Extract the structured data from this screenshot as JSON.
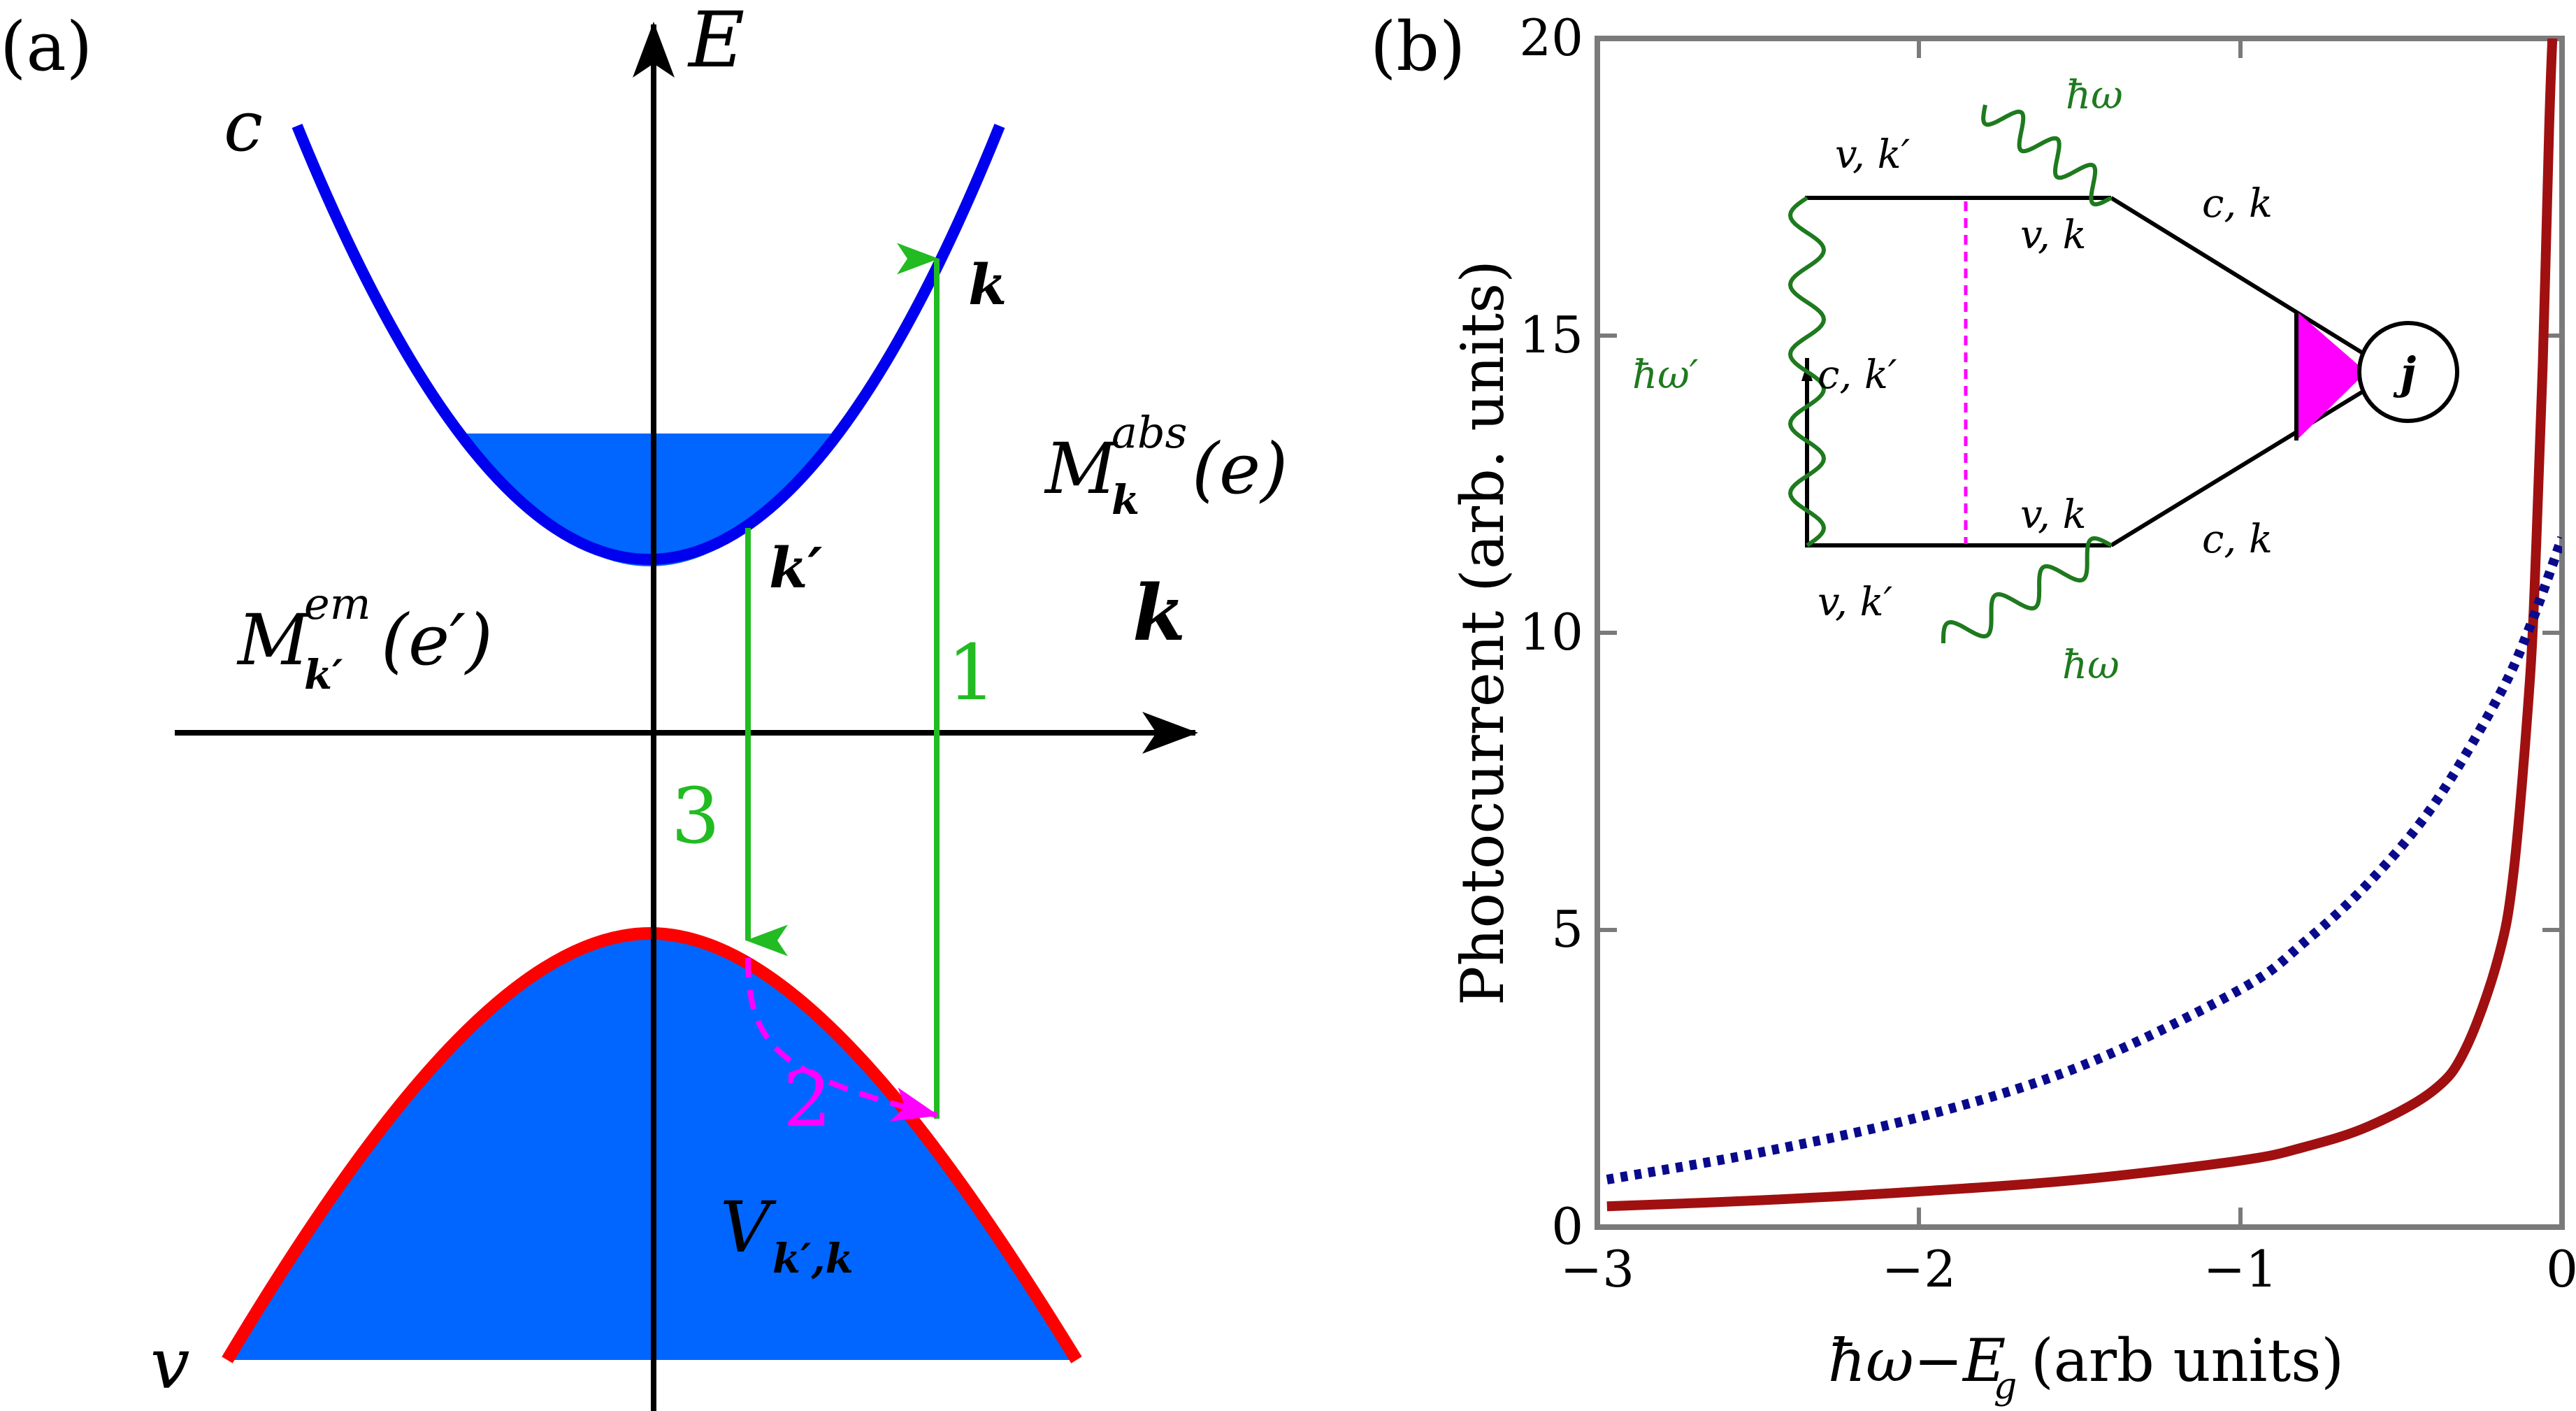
{
  "panel_a": {
    "label": "(a)",
    "axis_e": "E",
    "axis_k": "k",
    "band_c": "c",
    "band_v": "v",
    "k_label": "k",
    "kprime_label": "k′",
    "step1": "1",
    "step2": "2",
    "step3": "3",
    "m_abs": {
      "base": "M",
      "sup": "abs",
      "sub": "k",
      "arg": "(e)"
    },
    "m_em": {
      "base": "M",
      "sup": "em",
      "sub": "k′",
      "arg": "(e′)"
    },
    "v_int": {
      "base": "V",
      "sub": "k′,k"
    },
    "colors": {
      "conduction": "#0000ff",
      "valence": "#ff0000",
      "fill": "#0066ff",
      "transition": "#22bb22",
      "scatter": "#ff00ff"
    }
  },
  "panel_b": {
    "label": "(b)",
    "ylabel": "Photocurrent (arb. units)",
    "xlabel": "ħω−E",
    "xlabel_sub": "g",
    "xlabel_unit": "(arb units)",
    "inset": {
      "j": "j",
      "top_left": "v, k′",
      "top_mid": "v, k",
      "top_right": "c, k",
      "mid_left": "c, k′",
      "bot_mid": "v, k",
      "bot_right": "c, k",
      "bot_left": "v, k′",
      "photon_top": "ħω",
      "photon_bot": "ħω",
      "photon_left": "ħω′",
      "colors": {
        "line": "#000000",
        "photon": "#1e7a1e",
        "vertex": "#ff00ff"
      }
    }
  },
  "chart_data": {
    "type": "line",
    "xlabel": "ħω−E_g (arb units)",
    "ylabel": "Photocurrent (arb. units)",
    "xlim": [
      -3,
      0
    ],
    "ylim": [
      0,
      20
    ],
    "xticks": [
      "−3",
      "−2",
      "−1",
      "0"
    ],
    "xtick_values": [
      -3,
      -2,
      -1,
      0
    ],
    "yticks": [
      "0",
      "5",
      "10",
      "15",
      "20"
    ],
    "ytick_values": [
      0,
      5,
      10,
      15,
      20
    ],
    "series": [
      {
        "name": "solid",
        "style": "solid",
        "color": "#a01010",
        "x": [
          -2.97,
          -2.5,
          -2.0,
          -1.5,
          -1.0,
          -0.8,
          -0.6,
          -0.4,
          -0.3,
          -0.2,
          -0.15,
          -0.1,
          -0.08,
          -0.06,
          -0.04,
          -0.03
        ],
        "y": [
          0.35,
          0.45,
          0.6,
          0.8,
          1.12,
          1.35,
          1.7,
          2.3,
          3.0,
          4.5,
          6.0,
          9.2,
          11.5,
          14.5,
          18.5,
          20.0
        ]
      },
      {
        "name": "dotted",
        "style": "dotted",
        "color": "#0a0a8c",
        "x": [
          -2.97,
          -2.5,
          -2.0,
          -1.5,
          -1.0,
          -0.8,
          -0.6,
          -0.4,
          -0.2,
          -0.1,
          0.0
        ],
        "y": [
          0.8,
          1.25,
          1.85,
          2.7,
          4.0,
          4.8,
          5.8,
          7.1,
          8.9,
          10.1,
          11.6
        ]
      }
    ]
  }
}
